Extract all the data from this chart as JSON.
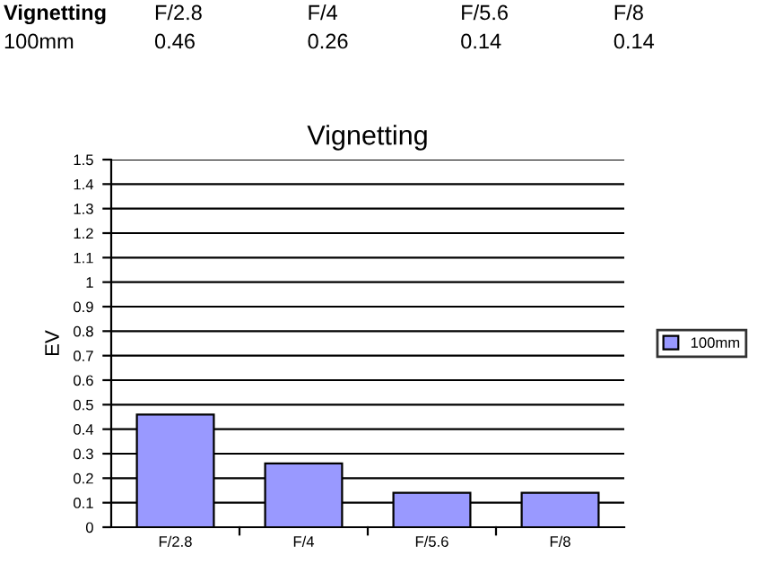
{
  "chart_data": {
    "type": "bar",
    "title": "Vignetting",
    "ylabel": "EV",
    "categories": [
      "F/2.8",
      "F/4",
      "F/5.6",
      "F/8"
    ],
    "series": [
      {
        "name": "100mm",
        "color": "#9999ff",
        "values": [
          0.46,
          0.26,
          0.14,
          0.14
        ]
      }
    ],
    "ylim": [
      0,
      1.5
    ],
    "yticks": [
      0,
      0.1,
      0.2,
      0.3,
      0.4,
      0.5,
      0.6,
      0.7,
      0.8,
      0.9,
      1,
      1.1,
      1.2,
      1.3,
      1.4,
      1.5
    ],
    "grid": "y",
    "legend": "right",
    "annotations": [
      "0.46",
      "0.26",
      "0.14",
      "0.14"
    ]
  }
}
